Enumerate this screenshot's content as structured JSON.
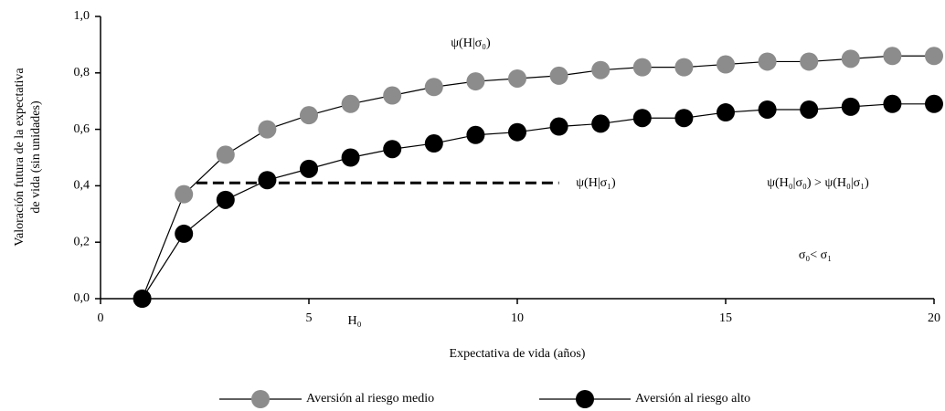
{
  "chart_data": {
    "type": "line",
    "x_label": "Expectativa de vida (años)",
    "y_label": [
      "Valoración futura de la expectativa",
      "de vida (sin unidades)"
    ],
    "xlim": [
      0,
      20
    ],
    "xticks": [
      0,
      5,
      10,
      15,
      20
    ],
    "ylim": [
      0,
      1
    ],
    "yticks": [
      {
        "value": 0,
        "label": "0,0"
      },
      {
        "value": 0.2,
        "label": "0,2"
      },
      {
        "value": 0.4,
        "label": "0,4"
      },
      {
        "value": 0.6,
        "label": "0,6"
      },
      {
        "value": 0.8,
        "label": "0,8"
      },
      {
        "value": 1,
        "label": "1,0"
      }
    ],
    "x": [
      1,
      2,
      3,
      4,
      5,
      6,
      7,
      8,
      9,
      10,
      11,
      12,
      13,
      14,
      15,
      16,
      17,
      18,
      19,
      20
    ],
    "series": [
      {
        "name": "Aversión al riesgo medio",
        "color": "#8c8c8c",
        "values": [
          0,
          0.37,
          0.51,
          0.6,
          0.65,
          0.69,
          0.72,
          0.75,
          0.77,
          0.78,
          0.79,
          0.81,
          0.82,
          0.82,
          0.83,
          0.84,
          0.84,
          0.85,
          0.86,
          0.86
        ]
      },
      {
        "name": "Aversión al riesgo alto",
        "color": "#000000",
        "values": [
          0,
          0.23,
          0.35,
          0.42,
          0.46,
          0.5,
          0.53,
          0.55,
          0.58,
          0.59,
          0.61,
          0.62,
          0.64,
          0.64,
          0.66,
          0.67,
          0.67,
          0.68,
          0.69,
          0.69
        ]
      }
    ],
    "reference_line": {
      "y": 0.41,
      "x": [
        2.3,
        11
      ]
    },
    "annotations": [
      "ψ(H|σ₀)",
      "ψ(H|σ₁)",
      "ψ(H₀|σ₀) > ψ(H₀|σ₁)",
      "σ₀< σ₁",
      "H₀"
    ],
    "legend": "bottom"
  }
}
